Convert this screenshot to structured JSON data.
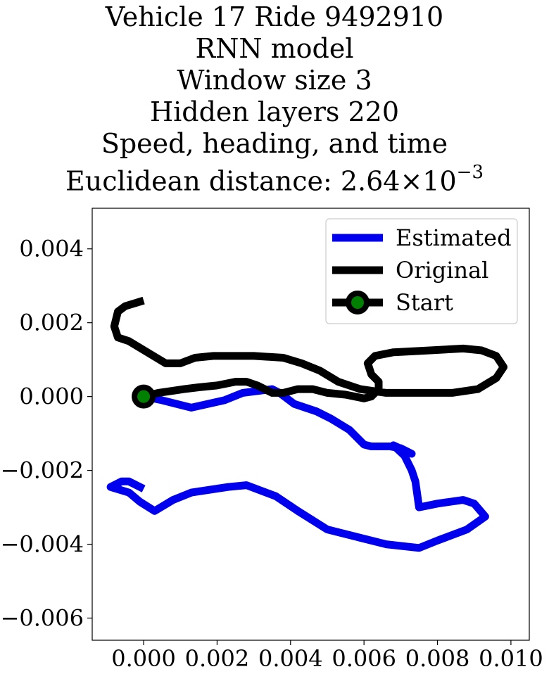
{
  "chart_data": {
    "type": "line",
    "title_lines": [
      "Vehicle 17 Ride 9492910",
      "RNN model",
      "Window size 3",
      "Hidden layers 220",
      "Speed, heading, and time"
    ],
    "title_distance_prefix": "Euclidean distance: ",
    "title_distance_mantissa": "2.64",
    "title_distance_times": "×10",
    "title_distance_exponent": "−3",
    "xlim": [
      -0.0014,
      0.0105
    ],
    "ylim": [
      -0.0066,
      0.0051
    ],
    "xticks": [
      0.0,
      0.002,
      0.004,
      0.006,
      0.008,
      0.01
    ],
    "xtick_labels": [
      "0.000",
      "0.002",
      "0.004",
      "0.006",
      "0.008",
      "0.010"
    ],
    "yticks": [
      0.004,
      0.002,
      0.0,
      -0.002,
      -0.004,
      -0.006
    ],
    "ytick_labels": [
      "0.004",
      "0.002",
      "0.000",
      "−0.002",
      "−0.004",
      "−0.006"
    ],
    "grid": false,
    "legend_position": "top-right",
    "series": [
      {
        "name": "Estimated",
        "color": "#0000ee",
        "points": [
          [
            0.0,
            0.0
          ],
          [
            0.0005,
            -0.0001
          ],
          [
            0.0013,
            -0.0003
          ],
          [
            0.0022,
            -0.0001
          ],
          [
            0.0027,
            0.0001
          ],
          [
            0.0035,
            0.0002
          ],
          [
            0.0037,
            0.0001
          ],
          [
            0.0041,
            -0.0002
          ],
          [
            0.0047,
            -0.0004
          ],
          [
            0.0051,
            -0.0006
          ],
          [
            0.0056,
            -0.0009
          ],
          [
            0.006,
            -0.0013
          ],
          [
            0.0062,
            -0.00135
          ],
          [
            0.0067,
            -0.00135
          ],
          [
            0.007,
            -0.0014
          ],
          [
            0.0073,
            -0.00155
          ],
          [
            0.0068,
            -0.00132
          ],
          [
            0.0071,
            -0.0016
          ],
          [
            0.0073,
            -0.002
          ],
          [
            0.0074,
            -0.0023
          ],
          [
            0.0075,
            -0.003
          ],
          [
            0.008,
            -0.0029
          ],
          [
            0.0087,
            -0.0028
          ],
          [
            0.009,
            -0.0029
          ],
          [
            0.0093,
            -0.00325
          ],
          [
            0.0088,
            -0.0036
          ],
          [
            0.008,
            -0.0039
          ],
          [
            0.0075,
            -0.0041
          ],
          [
            0.0066,
            -0.004
          ],
          [
            0.0058,
            -0.0038
          ],
          [
            0.005,
            -0.0036
          ],
          [
            0.0042,
            -0.0031
          ],
          [
            0.0036,
            -0.0027
          ],
          [
            0.0028,
            -0.0024
          ],
          [
            0.0023,
            -0.00245
          ],
          [
            0.0013,
            -0.0026
          ],
          [
            0.0008,
            -0.0028
          ],
          [
            0.0003,
            -0.0031
          ],
          [
            -0.0001,
            -0.00285
          ],
          [
            -0.0004,
            -0.0026
          ],
          [
            -0.0009,
            -0.00245
          ],
          [
            -0.0006,
            -0.0023
          ],
          [
            -0.0004,
            -0.0023
          ],
          [
            0.0,
            -0.0025
          ]
        ]
      },
      {
        "name": "Original",
        "color": "#000000",
        "points": [
          [
            0.0,
            0.0
          ],
          [
            0.0004,
            0.0001
          ],
          [
            0.0011,
            0.0002
          ],
          [
            0.0015,
            0.00025
          ],
          [
            0.002,
            0.0003
          ],
          [
            0.0025,
            0.0004
          ],
          [
            0.0028,
            0.0004
          ],
          [
            0.0031,
            0.0003
          ],
          [
            0.0035,
            0.0001
          ],
          [
            0.0038,
            0.0001
          ],
          [
            0.0042,
            0.0002
          ],
          [
            0.0046,
            0.0002
          ],
          [
            0.005,
            0.0001
          ],
          [
            0.0055,
            5e-05
          ],
          [
            0.006,
            -5e-05
          ],
          [
            0.0062,
            0.0
          ],
          [
            0.0064,
            0.0002
          ],
          [
            0.0064,
            0.0004
          ],
          [
            0.0062,
            0.0006
          ],
          [
            0.0061,
            0.0009
          ],
          [
            0.0063,
            0.0011
          ],
          [
            0.0068,
            0.0012
          ],
          [
            0.0078,
            0.00125
          ],
          [
            0.0087,
            0.0013
          ],
          [
            0.0092,
            0.00125
          ],
          [
            0.0096,
            0.0011
          ],
          [
            0.0098,
            0.0008
          ],
          [
            0.0096,
            0.0005
          ],
          [
            0.0091,
            0.0002
          ],
          [
            0.0084,
            0.0001
          ],
          [
            0.0075,
            0.0001
          ],
          [
            0.0066,
            0.0001
          ],
          [
            0.0059,
            0.0002
          ],
          [
            0.0053,
            0.0004
          ],
          [
            0.0048,
            0.0007
          ],
          [
            0.0043,
            0.0009
          ],
          [
            0.0038,
            0.00105
          ],
          [
            0.003,
            0.0011
          ],
          [
            0.0019,
            0.0011
          ],
          [
            0.0014,
            0.00105
          ],
          [
            0.001,
            0.0009
          ],
          [
            0.0006,
            0.0009
          ],
          [
            0.0001,
            0.0012
          ],
          [
            -0.0004,
            0.0015
          ],
          [
            -0.0007,
            0.0016
          ],
          [
            -0.0008,
            0.0019
          ],
          [
            -0.0007,
            0.0023
          ],
          [
            -0.0005,
            0.00245
          ],
          [
            0.0,
            0.0026
          ]
        ]
      },
      {
        "name": "Start",
        "color": "#000000",
        "marker_face": "#008000",
        "points": [
          [
            0.0,
            0.0
          ]
        ]
      }
    ]
  }
}
